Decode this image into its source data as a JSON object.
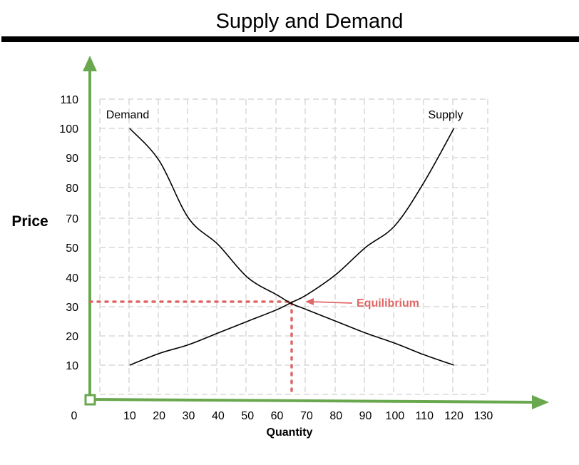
{
  "chart_data": {
    "type": "line",
    "title": "Supply and Demand",
    "xlabel": "Quantity",
    "ylabel": "Price",
    "origin_label": "0",
    "x_ticks": [
      10,
      20,
      30,
      40,
      50,
      60,
      70,
      80,
      90,
      100,
      110,
      120,
      130
    ],
    "y_ticks": [
      10,
      20,
      30,
      40,
      50,
      70,
      80,
      90,
      100,
      110
    ],
    "grid": true,
    "series": [
      {
        "name": "Demand",
        "color": "#000000",
        "points": [
          [
            10,
            100
          ],
          [
            20,
            89
          ],
          [
            30,
            70
          ],
          [
            40,
            52
          ],
          [
            50,
            40
          ],
          [
            60,
            34
          ],
          [
            65,
            31
          ],
          [
            70,
            29
          ],
          [
            80,
            25
          ],
          [
            90,
            21
          ],
          [
            100,
            17.5
          ],
          [
            110,
            13.5
          ],
          [
            120,
            10
          ]
        ]
      },
      {
        "name": "Supply",
        "color": "#000000",
        "points": [
          [
            10,
            10
          ],
          [
            20,
            14
          ],
          [
            30,
            17
          ],
          [
            40,
            21
          ],
          [
            50,
            25
          ],
          [
            60,
            29
          ],
          [
            65,
            31.5
          ],
          [
            70,
            34
          ],
          [
            80,
            41
          ],
          [
            90,
            50
          ],
          [
            100,
            65
          ],
          [
            110,
            82
          ],
          [
            120,
            100
          ]
        ]
      }
    ],
    "equilibrium": {
      "label": "Equilibrium",
      "x": 65,
      "y": 31.5,
      "color": "#e06666"
    },
    "axis_color": "#6aa84f",
    "grid_color": "#d9d9d9",
    "title_rule_color": "#000000"
  }
}
